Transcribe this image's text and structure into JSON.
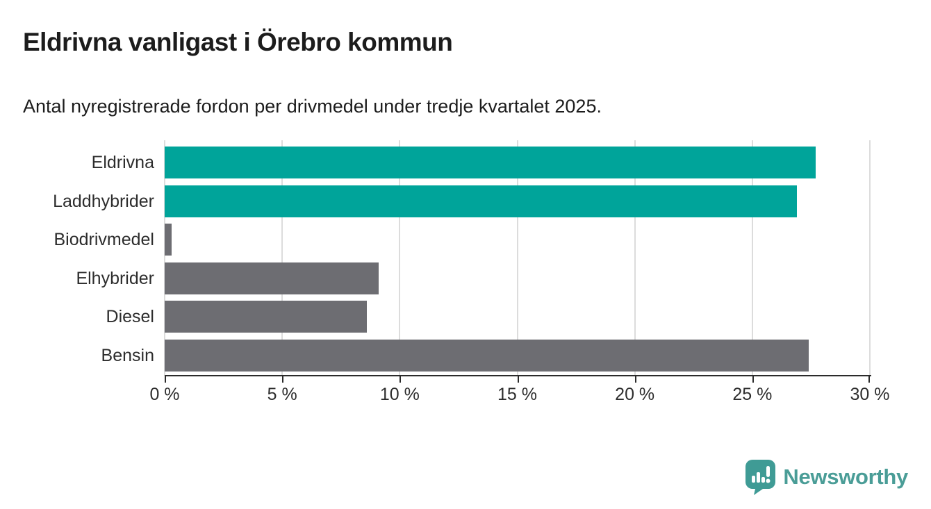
{
  "header": {
    "title": "Eldrivna vanligast i Örebro kommun",
    "subtitle": "Antal nyregistrerade fordon per drivmedel under tredje kvartalet 2025."
  },
  "chart_data": {
    "type": "bar",
    "orientation": "horizontal",
    "title": "Eldrivna vanligast i Örebro kommun",
    "subtitle": "Antal nyregistrerade fordon per drivmedel under tredje kvartalet 2025.",
    "categories": [
      "Eldrivna",
      "Laddhybrider",
      "Biodrivmedel",
      "Elhybrider",
      "Diesel",
      "Bensin"
    ],
    "values": [
      27.7,
      26.9,
      0.3,
      9.1,
      8.6,
      27.4
    ],
    "unit": "%",
    "xlim": [
      0,
      30
    ],
    "x_ticks": [
      0,
      5,
      10,
      15,
      20,
      25,
      30
    ],
    "x_tick_labels": [
      "0 %",
      "5 %",
      "10 %",
      "15 %",
      "20 %",
      "25 %",
      "30 %"
    ],
    "bar_colors": [
      "#00a49a",
      "#00a49a",
      "#6d6d72",
      "#6d6d72",
      "#6d6d72",
      "#6d6d72"
    ],
    "highlight_color": "#00a49a",
    "default_color": "#6d6d72",
    "gridline_color": "#dcdcdc",
    "axis_color": "#2b2b2b",
    "grid": "vertical",
    "legend": "none"
  },
  "branding": {
    "logo_text": "Newsworthy",
    "logo_color": "#4a9d97",
    "logo_icon": "speech-bubble-bar-chart-icon",
    "logo_icon_color": "#3f9b95"
  }
}
